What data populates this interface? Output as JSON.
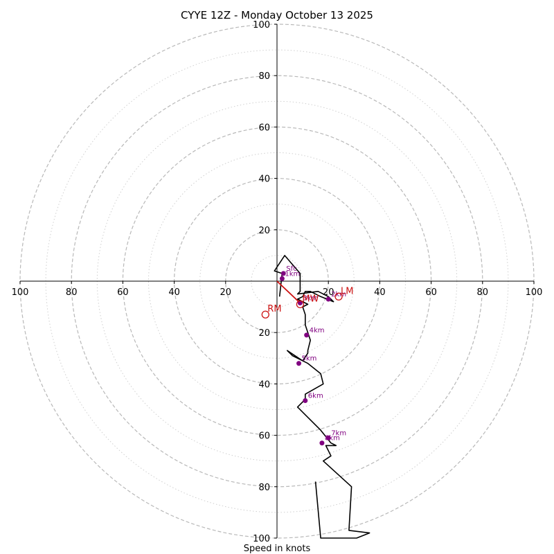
{
  "chart_data": {
    "type": "hodograph",
    "title": "CYYE 12Z - Monday October 13 2025",
    "xlabel": "Speed in knots",
    "range": [
      -100,
      100
    ],
    "major_rings": [
      20,
      40,
      60,
      80,
      100
    ],
    "minor_rings": [
      10,
      30,
      50,
      70,
      90
    ],
    "tick_labels": [
      "100",
      "80",
      "60",
      "40",
      "20",
      "20",
      "40",
      "60",
      "80",
      "100"
    ],
    "y_tick_labels": [
      "100",
      "80",
      "60",
      "40",
      "20",
      "20",
      "40",
      "60",
      "80",
      "100"
    ],
    "profile": [
      [
        1,
        -6
      ],
      [
        2,
        3
      ],
      [
        -1,
        4
      ],
      [
        3,
        10
      ],
      [
        9,
        3
      ],
      [
        9,
        -4
      ],
      [
        8,
        -5
      ],
      [
        16,
        -4
      ],
      [
        20,
        -6
      ],
      [
        22,
        -8
      ],
      [
        17,
        -6
      ],
      [
        13,
        -4
      ],
      [
        11,
        -4
      ],
      [
        10,
        -6
      ],
      [
        8,
        -7
      ],
      [
        12,
        -9
      ],
      [
        10,
        -10
      ],
      [
        11,
        -13
      ],
      [
        11,
        -17
      ],
      [
        13,
        -23
      ],
      [
        12,
        -27
      ],
      [
        12,
        -28
      ],
      [
        10,
        -31
      ],
      [
        4,
        -27
      ],
      [
        6,
        -29
      ],
      [
        12,
        -32
      ],
      [
        17,
        -36
      ],
      [
        18,
        -40
      ],
      [
        11,
        -44
      ],
      [
        11,
        -46
      ],
      [
        9,
        -48
      ],
      [
        8,
        -49
      ],
      [
        11,
        -52
      ],
      [
        17,
        -58
      ],
      [
        21,
        -63
      ],
      [
        23,
        -64
      ],
      [
        19,
        -64
      ],
      [
        21,
        -68
      ],
      [
        18,
        -70
      ],
      [
        29,
        -80
      ],
      [
        28,
        -97
      ],
      [
        36,
        -98
      ],
      [
        31,
        -100
      ],
      [
        17,
        -100
      ],
      [
        15,
        -78
      ]
    ],
    "height_markers": [
      {
        "label": "Sfc",
        "u": 2.5,
        "v": 3
      },
      {
        "label": "1km",
        "u": 2,
        "v": 1
      },
      {
        "label": "2km",
        "u": 20,
        "v": -7
      },
      {
        "label": "3km",
        "u": 9,
        "v": -8.5
      },
      {
        "label": "4km",
        "u": 11.5,
        "v": -21
      },
      {
        "label": "5km",
        "u": 8.5,
        "v": -32
      },
      {
        "label": "6km",
        "u": 11,
        "v": -46.5
      },
      {
        "label": "7km",
        "u": 20,
        "v": -61
      },
      {
        "label": "8km",
        "u": 17.5,
        "v": -63
      }
    ],
    "mean_wind_line": [
      [
        0,
        0
      ],
      [
        9,
        -8.5
      ]
    ],
    "motion_markers": [
      {
        "label": "RM",
        "u": -4.5,
        "v": -13
      },
      {
        "label": "LM",
        "u": 24,
        "v": -6
      },
      {
        "label": "MW",
        "u": 9,
        "v": -9
      }
    ],
    "colors": {
      "profile": "#000000",
      "markers": "#800080",
      "motion": "#cc1111",
      "grid": "#b8b8b8"
    }
  }
}
